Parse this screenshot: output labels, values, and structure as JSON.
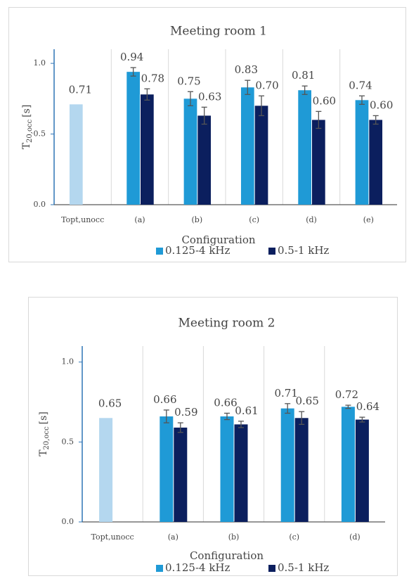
{
  "chart_data": [
    {
      "type": "bar",
      "title": "Meeting room 1",
      "categories": [
        "Topt,unocc",
        "(a)",
        "(b)",
        "(c)",
        "(d)",
        "(e)"
      ],
      "reference": {
        "value": 0.71,
        "label": "0.71",
        "color": "#b4d7ef"
      },
      "series": [
        {
          "name": "0.125-4 kHz",
          "color": "#1f9ad6",
          "values": [
            null,
            0.94,
            0.75,
            0.83,
            0.81,
            0.74
          ],
          "value_labels": [
            null,
            "0.94",
            "0.75",
            "0.83",
            "0.81",
            "0.74"
          ],
          "errors": [
            null,
            0.03,
            0.05,
            0.05,
            0.03,
            0.03
          ]
        },
        {
          "name": "0.5-1 kHz",
          "color": "#0b1f5e",
          "values": [
            null,
            0.78,
            0.63,
            0.7,
            0.6,
            0.6
          ],
          "value_labels": [
            null,
            "0.78",
            "0.63",
            "0.70",
            "0.60",
            "0.60"
          ],
          "errors": [
            null,
            0.04,
            0.06,
            0.07,
            0.06,
            0.03
          ]
        }
      ],
      "xlabel": "Configuration",
      "ylabel": "T",
      "ylabel_sub": "20,occ",
      "ylabel_unit": "[s]",
      "ylim": [
        0,
        1.1
      ],
      "yticks": [
        {
          "value": 0,
          "label": "0.0"
        },
        {
          "value": 0.5,
          "label": "0.5"
        },
        {
          "value": 1,
          "label": "1.0"
        }
      ],
      "grid": true,
      "legend": "bottom"
    },
    {
      "type": "bar",
      "title": "Meeting room 2",
      "categories": [
        "Topt,unocc",
        "(a)",
        "(b)",
        "(c)",
        "(d)"
      ],
      "reference": {
        "value": 0.65,
        "label": "0.65",
        "color": "#b4d7ef"
      },
      "series": [
        {
          "name": "0.125-4 kHz",
          "color": "#1f9ad6",
          "values": [
            null,
            0.66,
            0.66,
            0.71,
            0.72
          ],
          "value_labels": [
            null,
            "0.66",
            "0.66",
            "0.71",
            "0.72"
          ],
          "errors": [
            null,
            0.04,
            0.02,
            0.03,
            0.01
          ]
        },
        {
          "name": "0.5-1 kHz",
          "color": "#0b1f5e",
          "values": [
            null,
            0.59,
            0.61,
            0.65,
            0.64
          ],
          "value_labels": [
            null,
            "0.59",
            "0.61",
            "0.65",
            "0.64"
          ],
          "errors": [
            null,
            0.03,
            0.02,
            0.04,
            0.015
          ]
        }
      ],
      "xlabel": "Configuration",
      "ylabel": "T",
      "ylabel_sub": "20,occ",
      "ylabel_unit": "[s]",
      "ylim": [
        0,
        1.1
      ],
      "yticks": [
        {
          "value": 0,
          "label": "0.0"
        },
        {
          "value": 0.5,
          "label": "0.5"
        },
        {
          "value": 1,
          "label": "1.0"
        }
      ],
      "grid": true,
      "legend": "bottom"
    }
  ]
}
